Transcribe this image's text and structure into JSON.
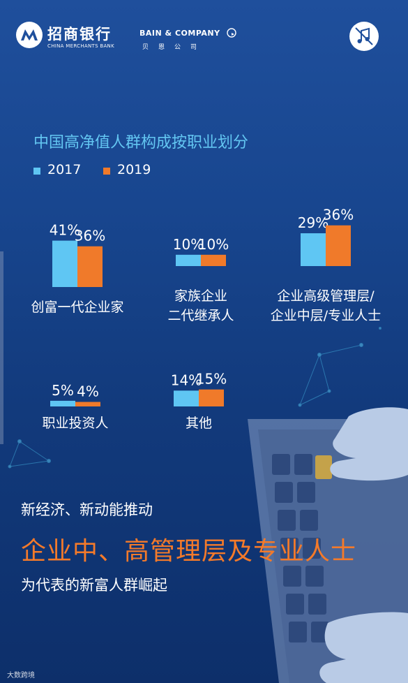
{
  "header": {
    "cmb_name": "招商银行",
    "cmb_english": "CHINA MERCHANTS BANK",
    "bain_name": "BAIN & COMPANY",
    "bain_chinese": "贝恩公司"
  },
  "chart_data": {
    "type": "bar",
    "title": "中国高净值人群构成按职业划分",
    "legend_placement": "top-left",
    "series": [
      {
        "name": "2017",
        "color": "#5fc6f3",
        "values": [
          41,
          10,
          29,
          5,
          14
        ]
      },
      {
        "name": "2019",
        "color": "#f07a2a",
        "values": [
          36,
          10,
          36,
          4,
          15
        ]
      }
    ],
    "value_labels": [
      [
        "41%",
        "36%"
      ],
      [
        "10%",
        "10%"
      ],
      [
        "29%",
        "36%"
      ],
      [
        "5%",
        "4%"
      ],
      [
        "14%",
        "15%"
      ]
    ],
    "categories": [
      [
        "创富一代企业家"
      ],
      [
        "家族企业",
        "二代继承人"
      ],
      [
        "企业高级管理层/",
        "企业中层/专业人士"
      ],
      [
        "职业投资人"
      ],
      [
        "其他"
      ]
    ]
  },
  "slogan": {
    "line1": "新经济、新动能推动",
    "line2": "企业中、高管理层及专业人士",
    "line3": "为代表的新富人群崛起"
  },
  "watermark": "大数跨境",
  "colors": {
    "series_2017": "#5fc6f3",
    "series_2019": "#f07a2a",
    "title": "#63c6f2",
    "highlight": "#f47a2a"
  },
  "icons": [
    "cmb-logo-icon",
    "bain-mark-icon",
    "music-off-icon"
  ]
}
